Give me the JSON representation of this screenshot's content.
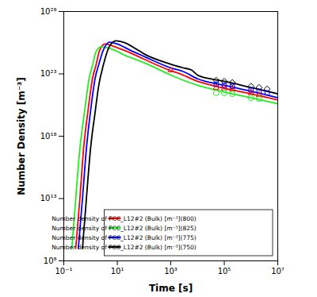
{
  "chart_data": {
    "type": "line",
    "xlabel": "Time [s]",
    "ylabel": "Number Density [m⁻³]",
    "log": true,
    "grid": false,
    "legend": "lower right",
    "xlim": [
      0.1,
      10000000
    ],
    "ylim": [
      100000000,
      1e+28
    ],
    "xticks": [
      {
        "value": 0.1,
        "label": "10⁻¹"
      },
      {
        "value": 10,
        "label": "10¹"
      },
      {
        "value": 1000,
        "label": "10³"
      },
      {
        "value": 100000,
        "label": "10⁵"
      },
      {
        "value": 10000000,
        "label": "10⁷"
      }
    ],
    "yticks": [
      {
        "value": 100000000,
        "label": "10⁸"
      },
      {
        "value": 10000000000000.0,
        "label": "10¹³"
      },
      {
        "value": 1e+18,
        "label": "10¹⁸"
      },
      {
        "value": 1e+23,
        "label": "10²³"
      },
      {
        "value": 1e+28,
        "label": "10²⁸"
      }
    ],
    "series": [
      {
        "name": "Number density of FCC_L12#2 (Bulk) [m⁻³](800)",
        "color": "#ff0000",
        "type": "line",
        "x": [
          0.28,
          0.4,
          0.55,
          0.8,
          1.2,
          1.6,
          2.2,
          3.5,
          8,
          30,
          100,
          1000,
          2000,
          10000,
          100000,
          1000000,
          10000000
        ],
        "values": [
          1000000000.0,
          10000000000000.0,
          1e+17,
          1e+20,
          5e+22,
          5e+23,
          8e+24,
          2.5e+25,
          1.5e+25,
          5e+24,
          1.5e+24,
          1.8e+23,
          1.1e+23,
          2.5e+22,
          7e+21,
          2.5e+21,
          8e+20
        ]
      },
      {
        "name": "Number density of FCC_L12#2 (Bulk) [m⁻³](825)",
        "color": "#22ee22",
        "type": "line",
        "x": [
          0.2,
          0.28,
          0.4,
          0.6,
          0.9,
          1.2,
          1.6,
          2.5,
          6,
          20,
          100,
          1000,
          10000,
          100000,
          1000000,
          10000000
        ],
        "values": [
          1000000000.0,
          10000000000000.0,
          1e+17,
          1e+20,
          5e+22,
          5e+23,
          6e+24,
          1.5e+25,
          1e+25,
          3e+24,
          8e+23,
          8e+22,
          1.2e+22,
          3.5e+21,
          1.2e+21,
          4e+20
        ]
      },
      {
        "name": "Number density of FCC_L12#2 (Bulk) [m⁻³](775)",
        "color": "#0000ff",
        "type": "line",
        "x": [
          0.35,
          0.5,
          0.7,
          1,
          1.5,
          2,
          3,
          5,
          10,
          30,
          100,
          1000,
          3000,
          10000,
          100000,
          1000000,
          10000000
        ],
        "values": [
          1000000000.0,
          10000000000000.0,
          1e+17,
          1e+20,
          5e+22,
          5e+23,
          8e+24,
          3.5e+25,
          2.5e+25,
          8e+24,
          2.5e+24,
          3e+23,
          1.5e+23,
          4e+22,
          1.2e+22,
          4e+21,
          1.2e+21
        ]
      },
      {
        "name": "Number density of FCC_L12#2 (Bulk) [m⁻³](750)",
        "color": "#000000",
        "type": "line",
        "x": [
          0.5,
          0.7,
          1,
          1.5,
          2,
          3,
          5,
          9,
          20,
          50,
          100,
          1000,
          3000,
          6000,
          10000,
          30000,
          100000,
          1000000,
          10000000
        ],
        "values": [
          1000000000.0,
          10000000000000.0,
          1e+17,
          1e+20,
          1e+22,
          5e+23,
          1.5e+25,
          4.5e+25,
          3e+25,
          1e+25,
          4e+24,
          6e+23,
          3e+23,
          2e+23,
          8e+22,
          4e+22,
          2.5e+22,
          8e+21,
          2.5e+21
        ]
      },
      {
        "color": "#000000",
        "type": "scatter",
        "marker": "diamond",
        "x": [
          50000,
          100000,
          200000,
          1000000,
          2000000,
          4000000
        ],
        "values": [
          3e+22,
          2.5e+22,
          2e+22,
          1e+22,
          8e+21,
          6e+21
        ]
      },
      {
        "color": "#0000ff",
        "type": "scatter",
        "marker": "square",
        "x": [
          50000,
          100000,
          200000,
          1000000,
          2000000,
          4000000
        ],
        "values": [
          1.5e+22,
          1.2e+22,
          1e+22,
          5e+21,
          4e+21,
          3e+21
        ]
      },
      {
        "color": "#ff0000",
        "type": "scatter",
        "marker": "triangle",
        "x": [
          1000,
          50000,
          100000,
          200000,
          1000000,
          2000000
        ],
        "values": [
          2e+23,
          8e+21,
          7e+21,
          6e+21,
          3e+21,
          2e+21
        ]
      },
      {
        "color": "#22ee22",
        "type": "scatter",
        "marker": "circle",
        "x": [
          50000,
          100000,
          200000,
          1000000,
          2000000
        ],
        "values": [
          3e+21,
          3e+21,
          2.5e+21,
          1.2e+21,
          1e+21
        ]
      }
    ]
  }
}
